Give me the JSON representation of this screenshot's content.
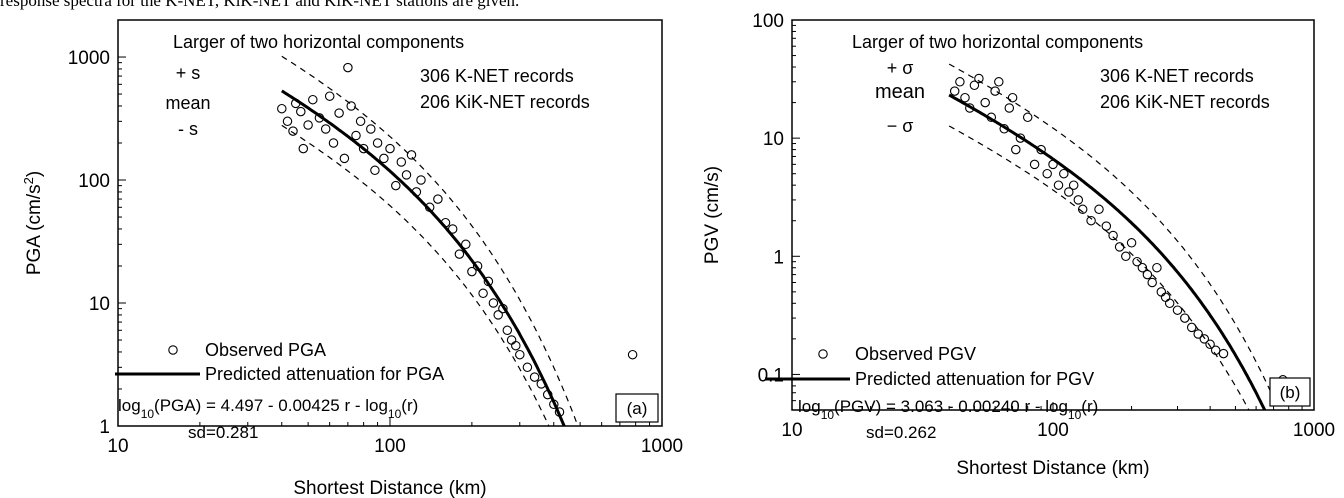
{
  "header_text": "response spectra for the K-NET, KiK-NET and KiK-NET stations are given.",
  "chart_data": [
    {
      "type": "scatter",
      "panel_label": "(a)",
      "xlabel": "Shortest Distance (km)",
      "ylabel_main": "PGA (cm/s",
      "ylabel_sup": "2",
      "ylabel_tail": ")",
      "x_scale": "log",
      "y_scale": "log",
      "xlim": [
        10,
        1000
      ],
      "ylim": [
        1,
        2000
      ],
      "xticks": [
        10,
        100,
        1000
      ],
      "xtick_labels": [
        "10",
        "100",
        "1000"
      ],
      "yticks": [
        1,
        10,
        100,
        1000
      ],
      "ytick_labels": [
        "1",
        "10",
        "100",
        "1000"
      ],
      "component_note": "Larger of two horizontal components",
      "curve_labels": {
        "plus": "+ s",
        "mean": "mean",
        "minus": "- s"
      },
      "records": [
        "306 K-NET records",
        "206 KiK-NET records"
      ],
      "legend": {
        "observed": "Observed PGA",
        "predicted": "Predicted attenuation for PGA"
      },
      "equation": {
        "pre": "log",
        "sub": "10",
        "mid": "(PGA) = 4.497 - 0.00425 r - log",
        "sub2": "10",
        "post": "(r)"
      },
      "sd_text": "sd=0.281",
      "model": {
        "a": 4.497,
        "b": 0.00425,
        "sd": 0.281,
        "r_min": 40,
        "r_max": 500
      },
      "observed_points": [
        [
          40,
          380
        ],
        [
          42,
          300
        ],
        [
          44,
          250
        ],
        [
          45,
          420
        ],
        [
          47,
          360
        ],
        [
          48,
          180
        ],
        [
          50,
          280
        ],
        [
          52,
          450
        ],
        [
          55,
          320
        ],
        [
          58,
          260
        ],
        [
          60,
          480
        ],
        [
          62,
          200
        ],
        [
          65,
          350
        ],
        [
          68,
          150
        ],
        [
          70,
          820
        ],
        [
          72,
          400
        ],
        [
          75,
          230
        ],
        [
          78,
          300
        ],
        [
          80,
          180
        ],
        [
          85,
          260
        ],
        [
          88,
          120
        ],
        [
          90,
          200
        ],
        [
          95,
          150
        ],
        [
          100,
          180
        ],
        [
          105,
          90
        ],
        [
          110,
          140
        ],
        [
          115,
          110
        ],
        [
          120,
          160
        ],
        [
          125,
          80
        ],
        [
          130,
          100
        ],
        [
          140,
          60
        ],
        [
          150,
          70
        ],
        [
          160,
          45
        ],
        [
          170,
          40
        ],
        [
          180,
          25
        ],
        [
          190,
          30
        ],
        [
          200,
          18
        ],
        [
          210,
          20
        ],
        [
          220,
          12
        ],
        [
          230,
          15
        ],
        [
          240,
          10
        ],
        [
          250,
          8
        ],
        [
          260,
          9
        ],
        [
          270,
          6
        ],
        [
          280,
          5
        ],
        [
          290,
          4.5
        ],
        [
          300,
          3.8
        ],
        [
          320,
          3
        ],
        [
          340,
          2.5
        ],
        [
          360,
          2.2
        ],
        [
          380,
          1.8
        ],
        [
          400,
          1.5
        ],
        [
          420,
          1.3
        ],
        [
          780,
          3.8
        ]
      ]
    },
    {
      "type": "scatter",
      "panel_label": "(b)",
      "xlabel": "Shortest Distance (km)",
      "ylabel_main": "PGV (cm/s)",
      "x_scale": "log",
      "y_scale": "log",
      "xlim": [
        10,
        1000
      ],
      "ylim": [
        0.05,
        100
      ],
      "xticks": [
        10,
        100,
        1000
      ],
      "xtick_labels": [
        "10",
        "100",
        "1000"
      ],
      "yticks": [
        0.1,
        1,
        10,
        100
      ],
      "ytick_labels": [
        "0.1",
        "1",
        "10",
        "100"
      ],
      "component_note": "Larger of two horizontal components",
      "curve_labels": {
        "plus": "+ σ",
        "mean": "mean",
        "minus": "− σ"
      },
      "records": [
        "306 K-NET records",
        "206 KiK-NET records"
      ],
      "legend": {
        "observed": "Observed PGV",
        "predicted": "Predicted attenuation for PGV"
      },
      "equation": {
        "pre": "log",
        "sub": "10",
        "mid": "(PGV) = 3.063 - 0.00240 r - log",
        "sub2": "10",
        "post": "(r)"
      },
      "sd_text": "sd=0.262",
      "model": {
        "a": 3.063,
        "b": 0.0024,
        "sd": 0.262,
        "r_min": 40,
        "r_max": 720
      },
      "observed_points": [
        [
          42,
          25
        ],
        [
          44,
          30
        ],
        [
          46,
          22
        ],
        [
          48,
          18
        ],
        [
          50,
          28
        ],
        [
          52,
          32
        ],
        [
          55,
          20
        ],
        [
          58,
          15
        ],
        [
          60,
          25
        ],
        [
          62,
          30
        ],
        [
          65,
          12
        ],
        [
          68,
          18
        ],
        [
          70,
          22
        ],
        [
          72,
          8
        ],
        [
          75,
          10
        ],
        [
          80,
          15
        ],
        [
          85,
          6
        ],
        [
          90,
          8
        ],
        [
          95,
          5
        ],
        [
          100,
          6
        ],
        [
          105,
          4
        ],
        [
          110,
          5
        ],
        [
          115,
          3.5
        ],
        [
          120,
          4
        ],
        [
          125,
          3
        ],
        [
          130,
          2.5
        ],
        [
          140,
          2
        ],
        [
          150,
          2.5
        ],
        [
          160,
          1.8
        ],
        [
          170,
          1.5
        ],
        [
          180,
          1.2
        ],
        [
          190,
          1
        ],
        [
          200,
          1.3
        ],
        [
          210,
          0.9
        ],
        [
          220,
          0.8
        ],
        [
          230,
          0.7
        ],
        [
          240,
          0.6
        ],
        [
          250,
          0.8
        ],
        [
          260,
          0.5
        ],
        [
          270,
          0.45
        ],
        [
          280,
          0.4
        ],
        [
          300,
          0.35
        ],
        [
          320,
          0.3
        ],
        [
          340,
          0.25
        ],
        [
          360,
          0.22
        ],
        [
          380,
          0.2
        ],
        [
          400,
          0.18
        ],
        [
          420,
          0.16
        ],
        [
          450,
          0.15
        ],
        [
          760,
          0.09
        ]
      ]
    }
  ]
}
